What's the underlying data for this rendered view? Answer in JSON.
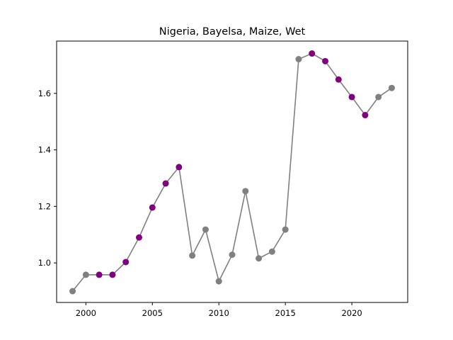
{
  "chart_data": {
    "type": "line",
    "title": "Nigeria, Bayelsa, Maize, Wet",
    "xlabel": "",
    "ylabel": "",
    "xlim": [
      1997.8,
      2024.2
    ],
    "ylim": [
      0.86,
      1.785
    ],
    "x_ticks": [
      2000,
      2005,
      2010,
      2015,
      2020
    ],
    "y_ticks": [
      1.0,
      1.2,
      1.4,
      1.6
    ],
    "grid": false,
    "line_color": "#808080",
    "highlight_color": "#800080",
    "points": [
      {
        "x": 1999,
        "y": 0.9,
        "highlight": false
      },
      {
        "x": 2000,
        "y": 0.958,
        "highlight": false
      },
      {
        "x": 2001,
        "y": 0.958,
        "highlight": true
      },
      {
        "x": 2002,
        "y": 0.958,
        "highlight": true
      },
      {
        "x": 2003,
        "y": 1.003,
        "highlight": true
      },
      {
        "x": 2004,
        "y": 1.09,
        "highlight": true
      },
      {
        "x": 2005,
        "y": 1.196,
        "highlight": true
      },
      {
        "x": 2006,
        "y": 1.281,
        "highlight": true
      },
      {
        "x": 2007,
        "y": 1.339,
        "highlight": true
      },
      {
        "x": 2008,
        "y": 1.026,
        "highlight": false
      },
      {
        "x": 2009,
        "y": 1.118,
        "highlight": false
      },
      {
        "x": 2010,
        "y": 0.935,
        "highlight": false
      },
      {
        "x": 2011,
        "y": 1.029,
        "highlight": false
      },
      {
        "x": 2012,
        "y": 1.254,
        "highlight": false
      },
      {
        "x": 2013,
        "y": 1.016,
        "highlight": false
      },
      {
        "x": 2014,
        "y": 1.04,
        "highlight": false
      },
      {
        "x": 2015,
        "y": 1.118,
        "highlight": false
      },
      {
        "x": 2016,
        "y": 1.721,
        "highlight": false
      },
      {
        "x": 2017,
        "y": 1.741,
        "highlight": true
      },
      {
        "x": 2018,
        "y": 1.714,
        "highlight": true
      },
      {
        "x": 2019,
        "y": 1.649,
        "highlight": true
      },
      {
        "x": 2020,
        "y": 1.587,
        "highlight": true
      },
      {
        "x": 2021,
        "y": 1.523,
        "highlight": true
      },
      {
        "x": 2022,
        "y": 1.587,
        "highlight": false
      },
      {
        "x": 2023,
        "y": 1.619,
        "highlight": false
      }
    ]
  }
}
